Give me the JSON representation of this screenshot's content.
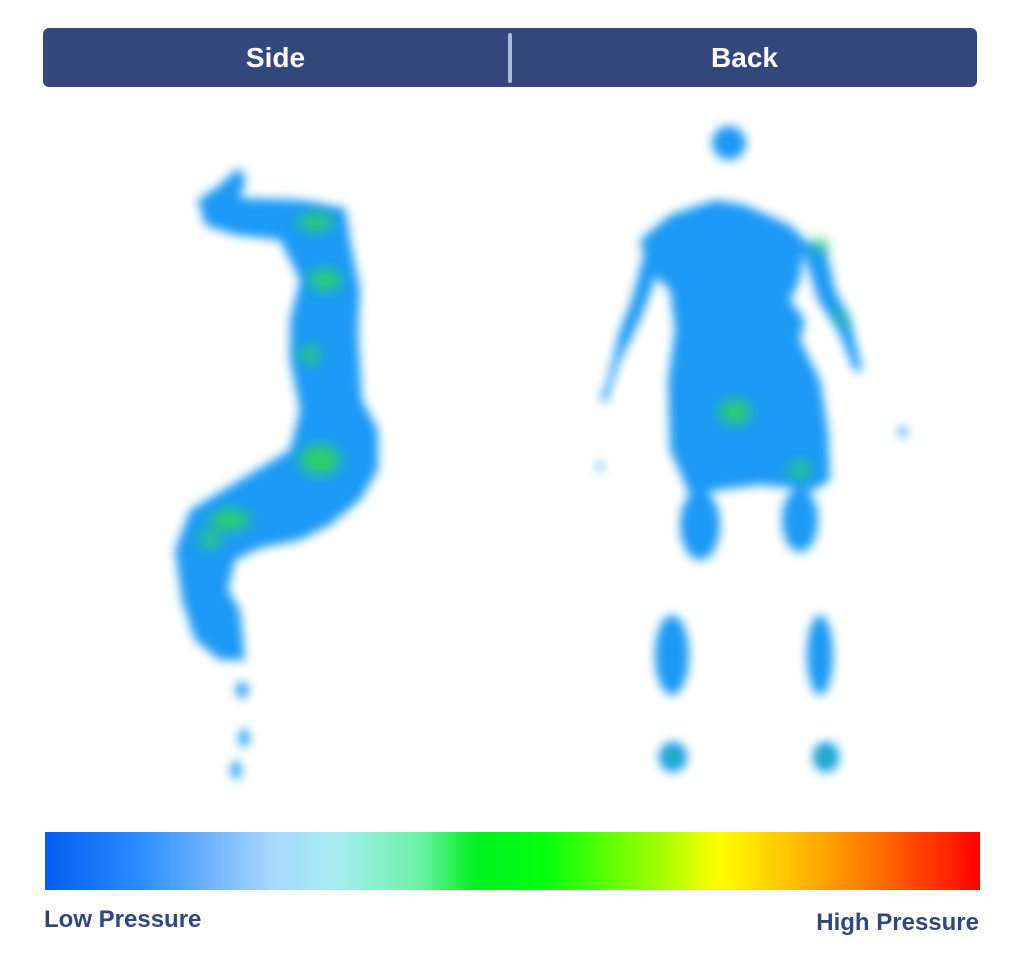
{
  "tabs": [
    {
      "label": "Side"
    },
    {
      "label": "Back"
    }
  ],
  "legend": {
    "low_label": "Low Pressure",
    "high_label": "High Pressure",
    "colors": [
      "#005ef0",
      "#a6ecf2",
      "#00ff10",
      "#ffff00",
      "#ff0000"
    ]
  },
  "colors": {
    "header": "#34477c",
    "body_pressure": "#1a9af5",
    "hotspot": "#2ee04a"
  },
  "figures": [
    {
      "name": "Side"
    },
    {
      "name": "Back"
    }
  ]
}
